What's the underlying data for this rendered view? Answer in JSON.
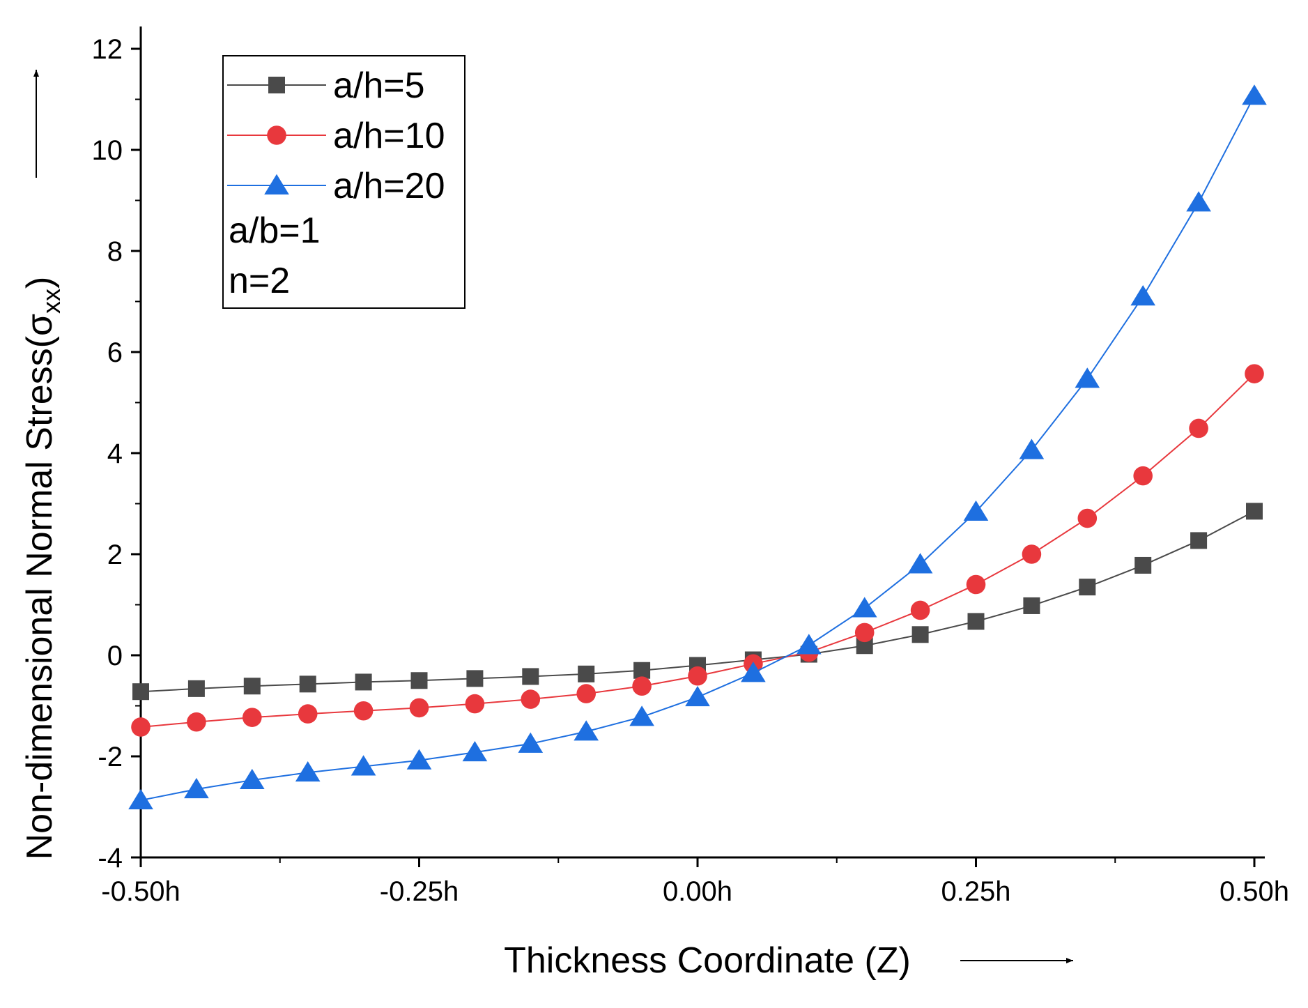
{
  "chart_data": {
    "type": "line",
    "xlabel": "Thickness Coordinate (Z)",
    "ylabel": "Non-dimensional Normal Stress(σ",
    "ylabel_subscript": "xx",
    "ylabel_close": ")",
    "xlim": [
      -0.5,
      0.5
    ],
    "ylim": [
      -4,
      12
    ],
    "x_ticks": [
      -0.5,
      -0.25,
      0,
      0.25,
      0.5
    ],
    "x_tick_labels": [
      "-0.50h",
      "-0.25h",
      "0.00h",
      "0.25h",
      "0.50h"
    ],
    "y_ticks": [
      -4,
      -2,
      0,
      2,
      4,
      6,
      8,
      10,
      12
    ],
    "y_tick_labels": [
      "-4",
      "-2",
      "0",
      "2",
      "4",
      "6",
      "8",
      "10",
      "12"
    ],
    "grid": false,
    "legend_position": "top-left",
    "x": [
      -0.5,
      -0.45,
      -0.4,
      -0.35,
      -0.3,
      -0.25,
      -0.2,
      -0.15,
      -0.1,
      -0.05,
      0,
      0.05,
      0.1,
      0.15,
      0.2,
      0.25,
      0.3,
      0.35,
      0.4,
      0.45,
      0.5
    ],
    "series": [
      {
        "name": "a/h=5",
        "color": "#4a4a4a",
        "marker": "square",
        "values": [
          -0.72,
          -0.66,
          -0.61,
          -0.57,
          -0.53,
          -0.5,
          -0.46,
          -0.42,
          -0.37,
          -0.3,
          -0.2,
          -0.09,
          0.02,
          0.19,
          0.41,
          0.67,
          0.98,
          1.35,
          1.78,
          2.27,
          2.85
        ]
      },
      {
        "name": "a/h=10",
        "color": "#e8383d",
        "marker": "circle",
        "values": [
          -1.42,
          -1.32,
          -1.23,
          -1.16,
          -1.1,
          -1.04,
          -0.96,
          -0.87,
          -0.76,
          -0.61,
          -0.41,
          -0.17,
          0.06,
          0.45,
          0.89,
          1.4,
          2.0,
          2.71,
          3.55,
          4.49,
          5.57
        ]
      },
      {
        "name": "a/h=20",
        "color": "#1e6fe0",
        "marker": "triangle",
        "values": [
          -2.87,
          -2.65,
          -2.47,
          -2.32,
          -2.2,
          -2.08,
          -1.92,
          -1.75,
          -1.51,
          -1.22,
          -0.83,
          -0.35,
          0.2,
          0.93,
          1.8,
          2.84,
          4.06,
          5.47,
          7.1,
          8.96,
          11.07
        ]
      }
    ],
    "annotations": [
      "a/b=1",
      "n=2"
    ]
  }
}
